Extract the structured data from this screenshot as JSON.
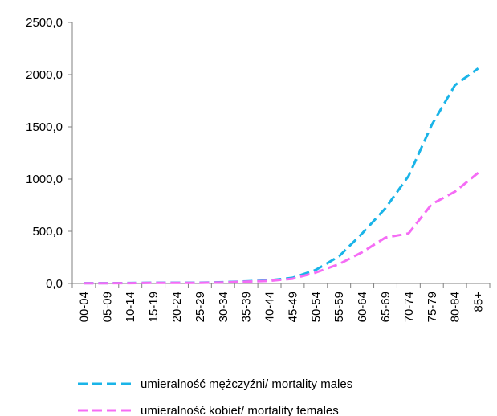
{
  "chart_data": {
    "type": "line",
    "categories": [
      "00-04",
      "05-09",
      "10-14",
      "15-19",
      "20-24",
      "25-29",
      "30-34",
      "35-39",
      "40-44",
      "45-49",
      "50-54",
      "55-59",
      "60-64",
      "65-69",
      "70-74",
      "75-79",
      "80-84",
      "85+"
    ],
    "series": [
      {
        "name": "umieralność mężczyźni/ mortality males",
        "color": "#1AB4E8",
        "values": [
          3,
          3,
          5,
          8,
          8,
          8,
          12,
          20,
          30,
          55,
          130,
          260,
          480,
          720,
          1030,
          1520,
          1900,
          2060
        ]
      },
      {
        "name": "umieralność kobiet/ mortality females",
        "color": "#F56CF5",
        "values": [
          2,
          2,
          3,
          6,
          6,
          6,
          10,
          18,
          25,
          45,
          105,
          185,
          300,
          440,
          480,
          760,
          880,
          1060
        ]
      }
    ],
    "y_ticks": [
      "0,0",
      "500,0",
      "1000,0",
      "1500,0",
      "2000,0",
      "2500,0"
    ],
    "ylim": [
      0,
      2500
    ],
    "grid": false,
    "legend_position": "bottom",
    "title": "",
    "xlabel": "",
    "ylabel": ""
  }
}
